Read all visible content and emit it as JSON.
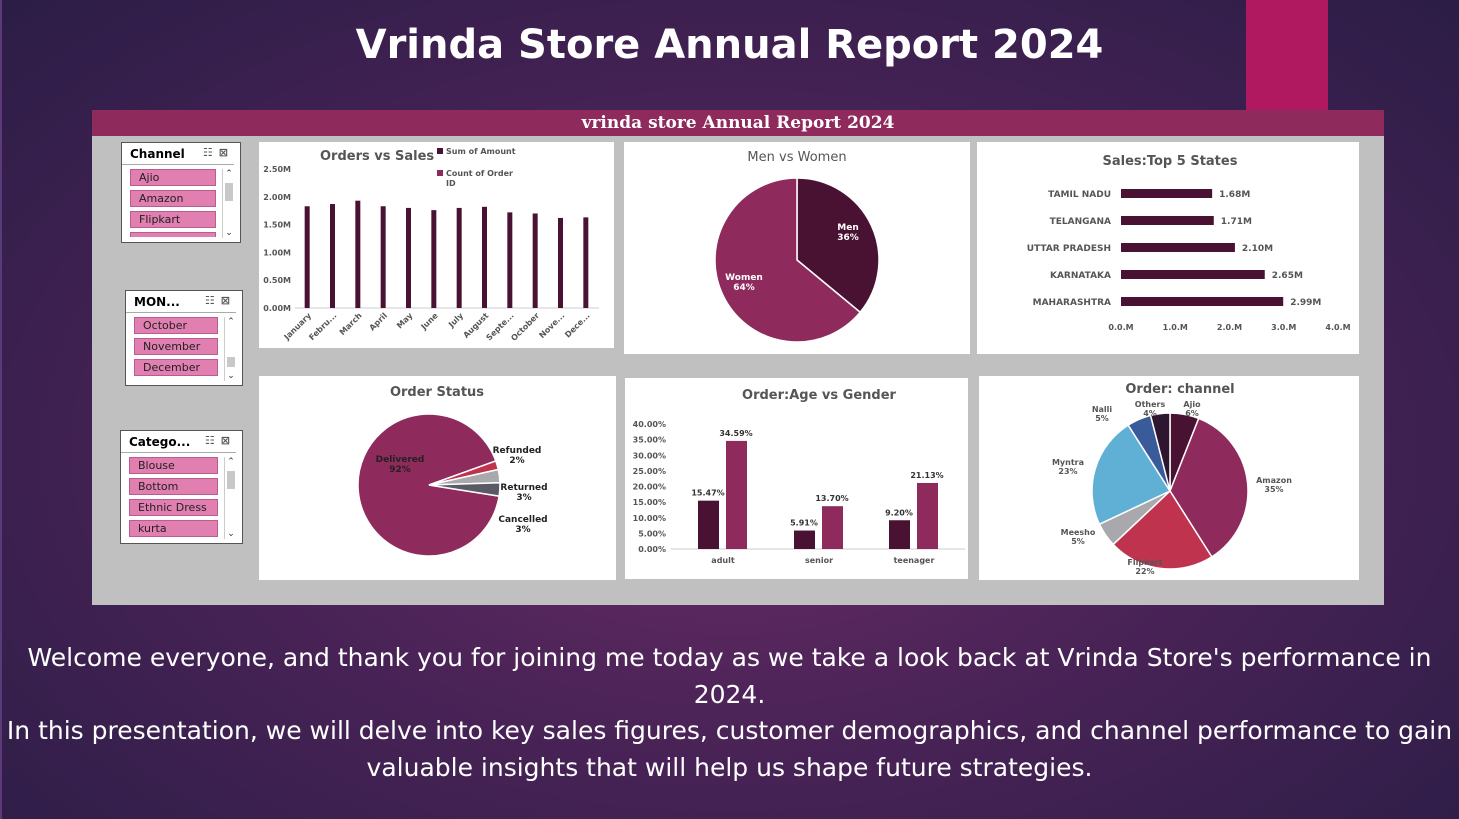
{
  "slide": {
    "title": "Vrinda Store Annual Report 2024",
    "caption_line1": "Welcome everyone, and thank you for joining me today as we take a look back at Vrinda Store's performance in 2024.",
    "caption_line2": "In this presentation, we will delve into key sales figures, customer demographics, and channel performance to gain valuable insights that will help us shape future strategies.",
    "accent_color": "#b0195f"
  },
  "dashboard": {
    "header": "vrinda store Annual Report 2024",
    "header_color": "#8e2a5c"
  },
  "slicers": [
    {
      "title": "Channel",
      "items": [
        "Ajio",
        "Amazon",
        "Flipkart"
      ]
    },
    {
      "title": "MON...",
      "items": [
        "October",
        "November",
        "December"
      ]
    },
    {
      "title": "Catego...",
      "items": [
        "Blouse",
        "Bottom",
        "Ethnic Dress",
        "kurta"
      ]
    }
  ],
  "chart_data": [
    {
      "type": "bar",
      "title": "Orders vs Sales",
      "categories": [
        "January",
        "Febru...",
        "March",
        "April",
        "May",
        "June",
        "July",
        "August",
        "Septe...",
        "October",
        "Nove...",
        "Dece..."
      ],
      "series": [
        {
          "name": "Sum of Amount",
          "values": [
            1.83,
            1.87,
            1.93,
            1.83,
            1.8,
            1.76,
            1.8,
            1.82,
            1.72,
            1.7,
            1.62,
            1.63
          ]
        },
        {
          "name": "Count of Order ID",
          "values": [
            0,
            0,
            0,
            0,
            0,
            0,
            0,
            0,
            0,
            0,
            0,
            0
          ]
        }
      ],
      "yticks": [
        "0.00M",
        "0.50M",
        "1.00M",
        "1.50M",
        "2.00M",
        "2.50M"
      ],
      "ylim": [
        0,
        2.5
      ],
      "colors": [
        "#4a1232",
        "#8e2a5c"
      ]
    },
    {
      "type": "pie",
      "title": "Men vs Women",
      "slices": [
        {
          "label": "Men",
          "pct_label": "36%",
          "value": 36,
          "color": "#4a1232"
        },
        {
          "label": "Women",
          "pct_label": "64%",
          "value": 64,
          "color": "#8e2a5c"
        }
      ]
    },
    {
      "type": "bar",
      "orientation": "horizontal",
      "title": "Sales:Top 5 States",
      "categories": [
        "TAMIL NADU",
        "TELANGANA",
        "UTTAR PRADESH",
        "KARNATAKA",
        "MAHARASHTRA"
      ],
      "values": [
        1.68,
        1.71,
        2.1,
        2.65,
        2.99
      ],
      "value_labels": [
        "1.68M",
        "1.71M",
        "2.10M",
        "2.65M",
        "2.99M"
      ],
      "xticks": [
        "0.0.M",
        "1.0.M",
        "2.0.M",
        "3.0.M",
        "4.0.M"
      ],
      "xlim": [
        0,
        4
      ],
      "color": "#4a1232"
    },
    {
      "type": "pie",
      "title": "Order Status",
      "slices": [
        {
          "label": "Delivered",
          "pct_label": "92%",
          "value": 92,
          "color": "#8e2a5c"
        },
        {
          "label": "Refunded",
          "pct_label": "2%",
          "value": 2,
          "color": "#c0334f"
        },
        {
          "label": "Returned",
          "pct_label": "3%",
          "value": 3,
          "color": "#a9a9ad"
        },
        {
          "label": "Cancelled",
          "pct_label": "3%",
          "value": 3,
          "color": "#5a5a66"
        }
      ]
    },
    {
      "type": "bar",
      "title": "Order:Age vs Gender",
      "categories": [
        "adult",
        "senior",
        "teenager"
      ],
      "series": [
        {
          "values": [
            15.47,
            5.91,
            9.2
          ],
          "labels": [
            "15.47%",
            "5.91%",
            "9.20%"
          ]
        },
        {
          "values": [
            34.59,
            13.7,
            21.13
          ],
          "labels": [
            "34.59%",
            "13.70%",
            "21.13%"
          ]
        }
      ],
      "yticks": [
        "0.00%",
        "5.00%",
        "10.00%",
        "15.00%",
        "20.00%",
        "25.00%",
        "30.00%",
        "35.00%",
        "40.00%"
      ],
      "ylim": [
        0,
        40
      ],
      "colors": [
        "#4a1232",
        "#8e2a5c"
      ]
    },
    {
      "type": "pie",
      "title": "Order: channel",
      "slices": [
        {
          "label": "Ajio",
          "pct_label": "6%",
          "value": 6,
          "color": "#4a1232"
        },
        {
          "label": "Amazon",
          "pct_label": "35%",
          "value": 35,
          "color": "#8e2a5c"
        },
        {
          "label": "Flipkart",
          "pct_label": "22%",
          "value": 22,
          "color": "#c0334f"
        },
        {
          "label": "Meesho",
          "pct_label": "5%",
          "value": 5,
          "color": "#a9a9ad"
        },
        {
          "label": "Myntra",
          "pct_label": "23%",
          "value": 23,
          "color": "#5fb0d4"
        },
        {
          "label": "Nalli",
          "pct_label": "5%",
          "value": 5,
          "color": "#3a5b9a"
        },
        {
          "label": "Others",
          "pct_label": "4%",
          "value": 4,
          "color": "#2e1630"
        }
      ]
    }
  ]
}
